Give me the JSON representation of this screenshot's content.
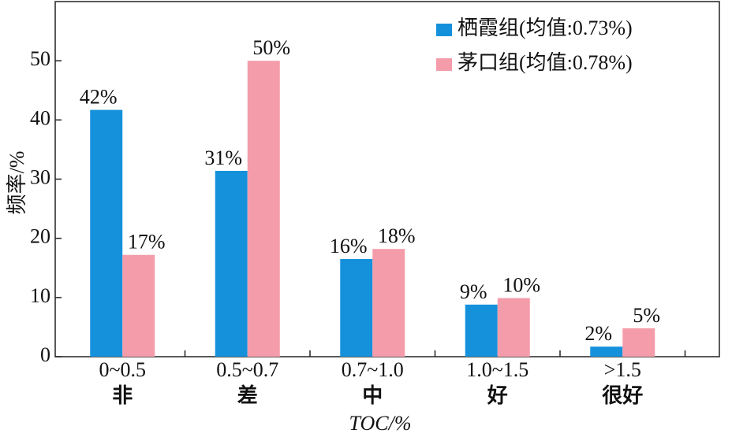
{
  "chart_data": {
    "type": "bar",
    "categories": [
      "0~0.5",
      "0.5~0.7",
      "0.7~1.0",
      "1.0~1.5",
      ">1.5"
    ],
    "category_grades": [
      "非",
      "差",
      "中",
      "好",
      "很好"
    ],
    "series": [
      {
        "name": "栖霞组(均值:0.73%)",
        "color": "#1591dc",
        "values": [
          41.7,
          31.4,
          16.5,
          8.8,
          1.7
        ],
        "value_labels": [
          "42%",
          "31%",
          "16%",
          "9%",
          "2%"
        ]
      },
      {
        "name": "茅口组(均值:0.78%)",
        "color": "#f59caa",
        "values": [
          17.2,
          50,
          18.2,
          9.9,
          4.8
        ],
        "value_labels": [
          "17%",
          "50%",
          "18%",
          "10%",
          "5%"
        ]
      }
    ],
    "ylim": [
      0,
      60
    ],
    "yticks": [
      0,
      10,
      20,
      30,
      40,
      50
    ],
    "y_label": "频率/%",
    "x_label": "TOC/%",
    "legend": "top-right",
    "grid": false
  }
}
